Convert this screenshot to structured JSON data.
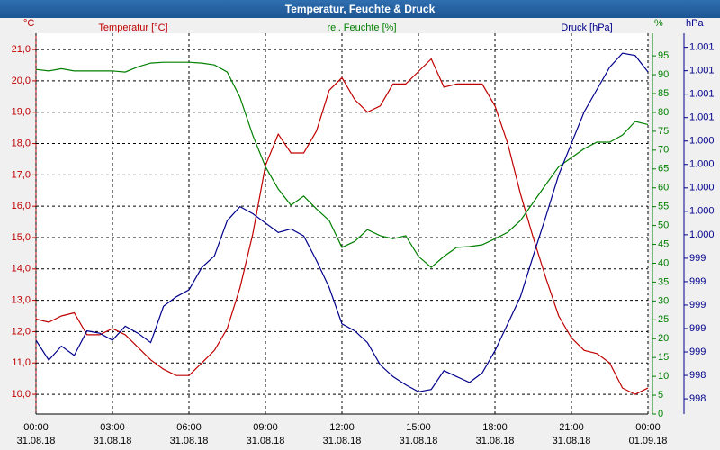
{
  "chart_data": {
    "type": "line",
    "title": "Temperatur, Feuchte & Druck",
    "ylabel": "°C",
    "y2label": "%",
    "y3label": "hPa",
    "xlim": [
      0,
      24
    ],
    "xticks": [
      {
        "value": 0,
        "label": "00:00"
      },
      {
        "value": 3,
        "label": "03:00"
      },
      {
        "value": 6,
        "label": "06:00"
      },
      {
        "value": 9,
        "label": "09:00"
      },
      {
        "value": 12,
        "label": "12:00"
      },
      {
        "value": 15,
        "label": "15:00"
      },
      {
        "value": 18,
        "label": "18:00"
      },
      {
        "value": 21,
        "label": "21:00"
      },
      {
        "value": 24,
        "label": "00:00"
      }
    ],
    "xtick_dates": [
      "31.08.18",
      "31.08.18",
      "31.08.18",
      "31.08.18",
      "31.08.18",
      "31.08.18",
      "31.08.18",
      "31.08.18",
      "01.09.18"
    ],
    "ylim": [
      9.37,
      21.52
    ],
    "yticks": [
      {
        "value": 10,
        "label": "10,0"
      },
      {
        "value": 11,
        "label": "11,0"
      },
      {
        "value": 12,
        "label": "12,0"
      },
      {
        "value": 13,
        "label": "13,0"
      },
      {
        "value": 14,
        "label": "14,0"
      },
      {
        "value": 15,
        "label": "15,0"
      },
      {
        "value": 16,
        "label": "16,0"
      },
      {
        "value": 17,
        "label": "17,0"
      },
      {
        "value": 18,
        "label": "18,0"
      },
      {
        "value": 19,
        "label": "19,0"
      },
      {
        "value": 20,
        "label": "20,0"
      },
      {
        "value": 21,
        "label": "21,0"
      }
    ],
    "y2lim": [
      0,
      101
    ],
    "y2ticks": [
      0,
      5,
      10,
      15,
      20,
      25,
      30,
      35,
      40,
      45,
      50,
      55,
      60,
      65,
      70,
      75,
      80,
      85,
      90,
      95
    ],
    "y3lim": [
      998.07,
      1001.32
    ],
    "y3ticks": [
      {
        "value": 998.2,
        "label": "998"
      },
      {
        "value": 998.4,
        "label": "998"
      },
      {
        "value": 998.6,
        "label": "999"
      },
      {
        "value": 998.8,
        "label": "999"
      },
      {
        "value": 999.0,
        "label": "999"
      },
      {
        "value": 999.2,
        "label": "999"
      },
      {
        "value": 999.4,
        "label": "999"
      },
      {
        "value": 999.6,
        "label": "1.000"
      },
      {
        "value": 999.8,
        "label": "1.000"
      },
      {
        "value": 1000.0,
        "label": "1.000"
      },
      {
        "value": 1000.2,
        "label": "1.000"
      },
      {
        "value": 1000.4,
        "label": "1.000"
      },
      {
        "value": 1000.6,
        "label": "1.001"
      },
      {
        "value": 1000.8,
        "label": "1.001"
      },
      {
        "value": 1001.0,
        "label": "1.001"
      },
      {
        "value": 1001.2,
        "label": "1.001"
      }
    ],
    "grid": true,
    "x": [
      0,
      0.5,
      1,
      1.5,
      2,
      2.5,
      3,
      3.5,
      4,
      4.5,
      5,
      5.5,
      6,
      6.5,
      7,
      7.5,
      8,
      8.5,
      9,
      9.5,
      10,
      10.5,
      11,
      11.5,
      12,
      12.5,
      13,
      13.5,
      14,
      14.5,
      15,
      15.5,
      16,
      16.5,
      17,
      17.5,
      18,
      18.5,
      19,
      19.5,
      20,
      20.5,
      21,
      21.5,
      22,
      22.5,
      23,
      23.5,
      24
    ],
    "series": [
      {
        "name": "Temperatur [°C]",
        "color": "#c00000",
        "axis": "y",
        "values": [
          12.4,
          12.3,
          12.5,
          12.6,
          11.9,
          11.9,
          12.1,
          11.9,
          11.5,
          11.1,
          10.8,
          10.6,
          10.6,
          11.0,
          11.4,
          12.1,
          13.4,
          15.1,
          17.3,
          18.3,
          17.7,
          17.7,
          18.4,
          19.7,
          20.1,
          19.4,
          19.0,
          19.2,
          19.9,
          19.9,
          20.3,
          20.7,
          19.8,
          19.9,
          19.9,
          19.9,
          19.2,
          18.0,
          16.4,
          15.0,
          13.7,
          12.5,
          11.8,
          11.4,
          11.3,
          11.0,
          10.2,
          10.0,
          10.2
        ]
      },
      {
        "name": "rel. Feuchte [%]",
        "color": "#008000",
        "axis": "y2",
        "values": [
          91.4,
          91,
          91.6,
          91,
          91,
          91,
          91,
          90.7,
          92.1,
          93.1,
          93.3,
          93.3,
          93.3,
          93.1,
          92.6,
          90.7,
          84,
          74,
          65.6,
          59.7,
          55.4,
          57.8,
          54.4,
          51.3,
          44.2,
          45.8,
          48.9,
          47.3,
          46.5,
          47.3,
          41.8,
          38.9,
          41.8,
          44.2,
          44.4,
          44.9,
          46.5,
          48.2,
          51.3,
          56.1,
          60.9,
          65.6,
          68.0,
          70.4,
          72.1,
          72.1,
          74,
          77.6,
          76.8
        ]
      },
      {
        "name": "Druck [hPa]",
        "color": "#00008b",
        "axis": "y3",
        "values": [
          998.7,
          998.53,
          998.65,
          998.57,
          998.78,
          998.76,
          998.7,
          998.82,
          998.76,
          998.68,
          998.99,
          999.07,
          999.13,
          999.32,
          999.42,
          999.72,
          999.84,
          999.78,
          999.7,
          999.62,
          999.65,
          999.59,
          999.38,
          999.15,
          998.84,
          998.78,
          998.68,
          998.49,
          998.39,
          998.32,
          998.26,
          998.28,
          998.44,
          998.39,
          998.34,
          998.42,
          998.61,
          998.84,
          999.07,
          999.42,
          999.76,
          1000.11,
          1000.38,
          1000.65,
          1000.84,
          1001.03,
          1001.15,
          1001.13,
          1000.99
        ]
      }
    ]
  }
}
